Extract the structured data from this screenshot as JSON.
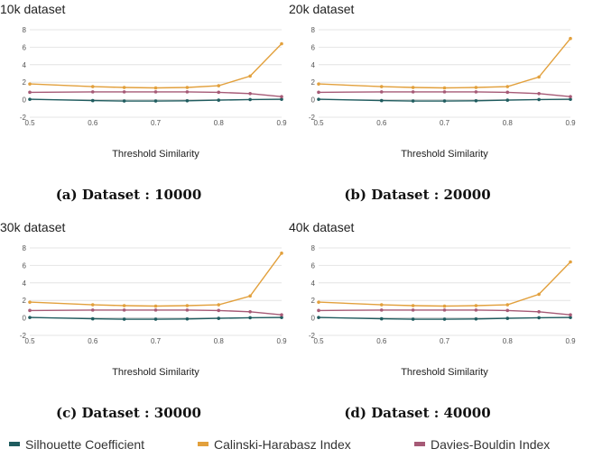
{
  "chart_data": [
    {
      "type": "line",
      "title": "10k dataset",
      "caption": "(a) Dataset : 10000",
      "xlabel": "Threshold Similarity",
      "ylabel": "",
      "x": [
        0.5,
        0.6,
        0.65,
        0.7,
        0.75,
        0.8,
        0.85,
        0.9
      ],
      "xticks": [
        "0.5",
        "0.6",
        "0.7",
        "0.8",
        "0.9"
      ],
      "yticks": [
        "-2",
        "0",
        "2",
        "4",
        "6",
        "8"
      ],
      "xlim": [
        0.5,
        0.9
      ],
      "ylim": [
        -2,
        8
      ],
      "grid": true,
      "series": [
        {
          "name": "Silhouette Coefficient",
          "values": [
            0.05,
            -0.1,
            -0.15,
            -0.15,
            -0.12,
            -0.05,
            0.02,
            0.05
          ]
        },
        {
          "name": "Calinski-Harabasz Index",
          "values": [
            1.8,
            1.5,
            1.4,
            1.35,
            1.4,
            1.6,
            2.7,
            6.4
          ]
        },
        {
          "name": "Davies-Bouldin Index",
          "values": [
            0.85,
            0.9,
            0.9,
            0.9,
            0.9,
            0.85,
            0.7,
            0.35
          ]
        }
      ]
    },
    {
      "type": "line",
      "title": "20k dataset",
      "caption": "(b) Dataset : 20000",
      "xlabel": "Threshold Similarity",
      "ylabel": "",
      "x": [
        0.5,
        0.6,
        0.65,
        0.7,
        0.75,
        0.8,
        0.85,
        0.9
      ],
      "xticks": [
        "0.5",
        "0.6",
        "0.7",
        "0.8",
        "0.9"
      ],
      "yticks": [
        "-2",
        "0",
        "2",
        "4",
        "6",
        "8"
      ],
      "xlim": [
        0.5,
        0.9
      ],
      "ylim": [
        -2,
        8
      ],
      "grid": true,
      "series": [
        {
          "name": "Silhouette Coefficient",
          "values": [
            0.05,
            -0.1,
            -0.15,
            -0.15,
            -0.12,
            -0.05,
            0.02,
            0.05
          ]
        },
        {
          "name": "Calinski-Harabasz Index",
          "values": [
            1.8,
            1.5,
            1.4,
            1.35,
            1.4,
            1.5,
            2.6,
            7.0
          ]
        },
        {
          "name": "Davies-Bouldin Index",
          "values": [
            0.85,
            0.9,
            0.9,
            0.9,
            0.9,
            0.85,
            0.7,
            0.35
          ]
        }
      ]
    },
    {
      "type": "line",
      "title": "30k dataset",
      "caption": "(c) Dataset : 30000",
      "xlabel": "Threshold Similarity",
      "ylabel": "",
      "x": [
        0.5,
        0.6,
        0.65,
        0.7,
        0.75,
        0.8,
        0.85,
        0.9
      ],
      "xticks": [
        "0.5",
        "0.6",
        "0.7",
        "0.8",
        "0.9"
      ],
      "yticks": [
        "-2",
        "0",
        "2",
        "4",
        "6",
        "8"
      ],
      "xlim": [
        0.5,
        0.9
      ],
      "ylim": [
        -2,
        8
      ],
      "grid": true,
      "series": [
        {
          "name": "Silhouette Coefficient",
          "values": [
            0.05,
            -0.1,
            -0.15,
            -0.15,
            -0.12,
            -0.05,
            0.02,
            0.05
          ]
        },
        {
          "name": "Calinski-Harabasz Index",
          "values": [
            1.8,
            1.5,
            1.4,
            1.35,
            1.4,
            1.5,
            2.5,
            7.4
          ]
        },
        {
          "name": "Davies-Bouldin Index",
          "values": [
            0.85,
            0.9,
            0.9,
            0.9,
            0.9,
            0.85,
            0.7,
            0.35
          ]
        }
      ]
    },
    {
      "type": "line",
      "title": "40k dataset",
      "caption": "(d) Dataset : 40000",
      "xlabel": "Threshold Similarity",
      "ylabel": "",
      "x": [
        0.5,
        0.6,
        0.65,
        0.7,
        0.75,
        0.8,
        0.85,
        0.9
      ],
      "xticks": [
        "0.5",
        "0.6",
        "0.7",
        "0.8",
        "0.9"
      ],
      "yticks": [
        "-2",
        "0",
        "2",
        "4",
        "6",
        "8"
      ],
      "xlim": [
        0.5,
        0.9
      ],
      "ylim": [
        -2,
        8
      ],
      "grid": true,
      "series": [
        {
          "name": "Silhouette Coefficient",
          "values": [
            0.05,
            -0.1,
            -0.15,
            -0.15,
            -0.12,
            -0.05,
            0.02,
            0.05
          ]
        },
        {
          "name": "Calinski-Harabasz Index",
          "values": [
            1.8,
            1.5,
            1.4,
            1.35,
            1.4,
            1.5,
            2.7,
            6.4
          ]
        },
        {
          "name": "Davies-Bouldin Index",
          "values": [
            0.85,
            0.9,
            0.9,
            0.9,
            0.9,
            0.85,
            0.7,
            0.35
          ]
        }
      ]
    }
  ],
  "legend": {
    "placement": "bottom",
    "items": [
      {
        "name": "Silhouette Coefficient",
        "color": "#1f5c5f"
      },
      {
        "name": "Calinski-Harabasz Index",
        "color": "#e2a03c"
      },
      {
        "name": "Davies-Bouldin Index",
        "color": "#a65a76"
      }
    ]
  },
  "colors": {
    "grid": "#e4e4e4",
    "zero_line": "#c8c8c8"
  }
}
